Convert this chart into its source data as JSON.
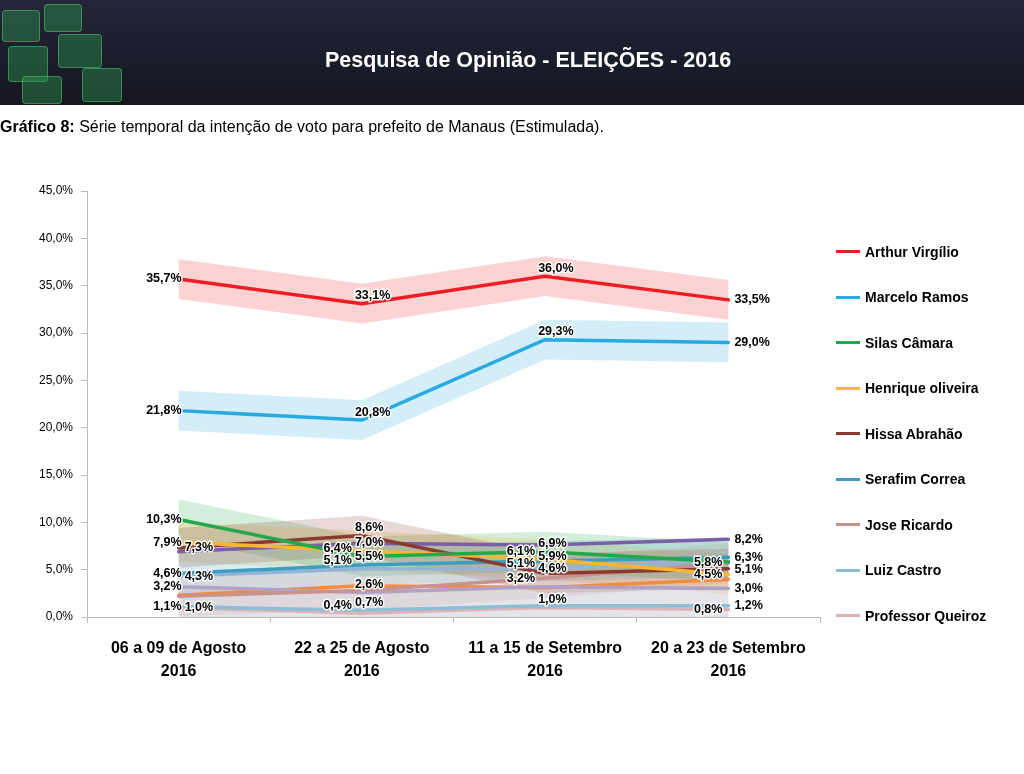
{
  "chart_data": {
    "type": "line",
    "title": "Pesquisa de Opinião - ELEIÇÕES - 2016",
    "subtitle": "Gráfico 8: Série temporal da intenção de voto para prefeito de Manaus (Estimulada).",
    "categories": [
      "06 a 09 de Agosto 2016",
      "22 a 25 de Agosto 2016",
      "11 a 15 de Setembro 2016",
      "20 a 23 de Setembro 2016"
    ],
    "ylim": [
      0,
      45
    ],
    "yticks": [
      {
        "value": 0,
        "label": "0,0%"
      },
      {
        "value": 5,
        "label": "5,0%"
      },
      {
        "value": 10,
        "label": "10,0%"
      },
      {
        "value": 15,
        "label": "15,0%"
      },
      {
        "value": 20,
        "label": "20,0%"
      },
      {
        "value": 25,
        "label": "25,0%"
      },
      {
        "value": 30,
        "label": "30,0%"
      },
      {
        "value": 35,
        "label": "35,0%"
      },
      {
        "value": 40,
        "label": "40,0%"
      },
      {
        "value": 45,
        "label": "45,0%"
      }
    ],
    "legend": "right",
    "series": [
      {
        "name": "Arthur Virgílio",
        "color": "#ee1d23",
        "values": [
          35.7,
          33.1,
          36.0,
          33.5
        ],
        "upper": [
          37.8,
          35.2,
          38.1,
          35.6
        ],
        "lower": [
          33.6,
          31.0,
          33.9,
          31.4
        ],
        "value_labels": [
          "35,7%",
          "33,1%",
          "36,0%",
          "33,5%"
        ]
      },
      {
        "name": "Marcelo Ramos",
        "color": "#29abe2",
        "values": [
          21.8,
          20.8,
          29.3,
          29.0
        ],
        "upper": [
          23.9,
          22.9,
          31.4,
          31.1
        ],
        "lower": [
          19.7,
          18.7,
          27.2,
          26.9
        ],
        "value_labels": [
          "21,8%",
          "20,8%",
          "29,3%",
          "29,0%"
        ]
      },
      {
        "name": "Silas Câmara",
        "color": "#23a84b",
        "values": [
          10.3,
          6.4,
          6.9,
          5.8
        ],
        "upper": [
          12.4,
          8.5,
          9.0,
          7.9
        ],
        "lower": [
          8.2,
          4.3,
          4.8,
          3.7
        ],
        "value_labels": [
          "10,3%",
          "6,4%",
          "6,9%",
          "5,8%"
        ]
      },
      {
        "name": "Henrique oliveira",
        "color": "#f8b633",
        "values": [
          7.9,
          7.0,
          6.1,
          4.5
        ],
        "upper": [
          10.0,
          9.1,
          8.2,
          6.6
        ],
        "lower": [
          5.8,
          4.9,
          4.0,
          2.4
        ],
        "value_labels": [
          "7,9%",
          "7,0%",
          "6,1%",
          "4,5%"
        ]
      },
      {
        "name": "Hissa Abrahão",
        "color": "#8b3a30",
        "values": [
          7.3,
          8.6,
          4.6,
          5.1
        ],
        "upper": [
          9.4,
          10.7,
          6.7,
          7.2
        ],
        "lower": [
          5.2,
          6.5,
          2.5,
          3.0
        ],
        "value_labels": [
          "7,3%",
          "8,6%",
          "4,6%",
          "5,1%"
        ]
      },
      {
        "name": "Serafim Correa",
        "color": "#3b9ec0",
        "values": [
          4.6,
          5.5,
          5.9,
          6.3
        ],
        "upper": [
          6.7,
          7.6,
          8.0,
          8.4
        ],
        "lower": [
          2.5,
          3.4,
          3.8,
          4.2
        ],
        "value_labels": [
          "4,6%",
          "5,5%",
          "5,9%",
          "6,3%"
        ]
      },
      {
        "name": "Jose Ricardo",
        "color": "#c8928f",
        "values": [
          2.2,
          2.8,
          4.1,
          5.7
        ],
        "upper": [
          4.3,
          4.9,
          6.2,
          7.8
        ],
        "lower": [
          0.1,
          0.7,
          2.0,
          3.6
        ]
      },
      {
        "name": "Luiz Castro",
        "color": "#8cbfd6",
        "values": [
          1.1,
          0.7,
          1.2,
          1.2
        ],
        "upper": [
          3.2,
          2.8,
          3.3,
          3.3
        ],
        "lower": [
          0,
          0,
          0,
          0
        ],
        "value_labels": [
          "1,1%",
          "0,7%",
          null,
          "1,2%"
        ]
      },
      {
        "name": "Professor Queiroz",
        "color": "#ddb3b6",
        "values": [
          1.0,
          0.4,
          1.0,
          0.8
        ],
        "upper": [
          3.1,
          2.5,
          3.1,
          2.9
        ],
        "lower": [
          0,
          0,
          0,
          0
        ],
        "value_labels": [
          "1,0%",
          "0,4%",
          "1,0%",
          "0,8%"
        ]
      },
      {
        "color": "#7b5ea6",
        "values": [
          6.9,
          7.8,
          7.6,
          8.2
        ],
        "value_labels": [
          null,
          null,
          null,
          "8,2%"
        ]
      },
      {
        "color": "#95b3d7",
        "values": [
          4.3,
          5.1,
          5.1,
          5.9
        ],
        "value_labels": [
          "4,3%",
          "5,1%",
          "5,1%",
          null
        ]
      },
      {
        "color": "#b2a1c7",
        "values": [
          3.2,
          2.6,
          3.2,
          3.0
        ],
        "value_labels": [
          "3,2%",
          "2,6%",
          "3,2%",
          "3,0%"
        ]
      },
      {
        "color": "#f08c3e",
        "values": [
          2.3,
          3.3,
          3.1,
          4.0
        ]
      }
    ]
  }
}
